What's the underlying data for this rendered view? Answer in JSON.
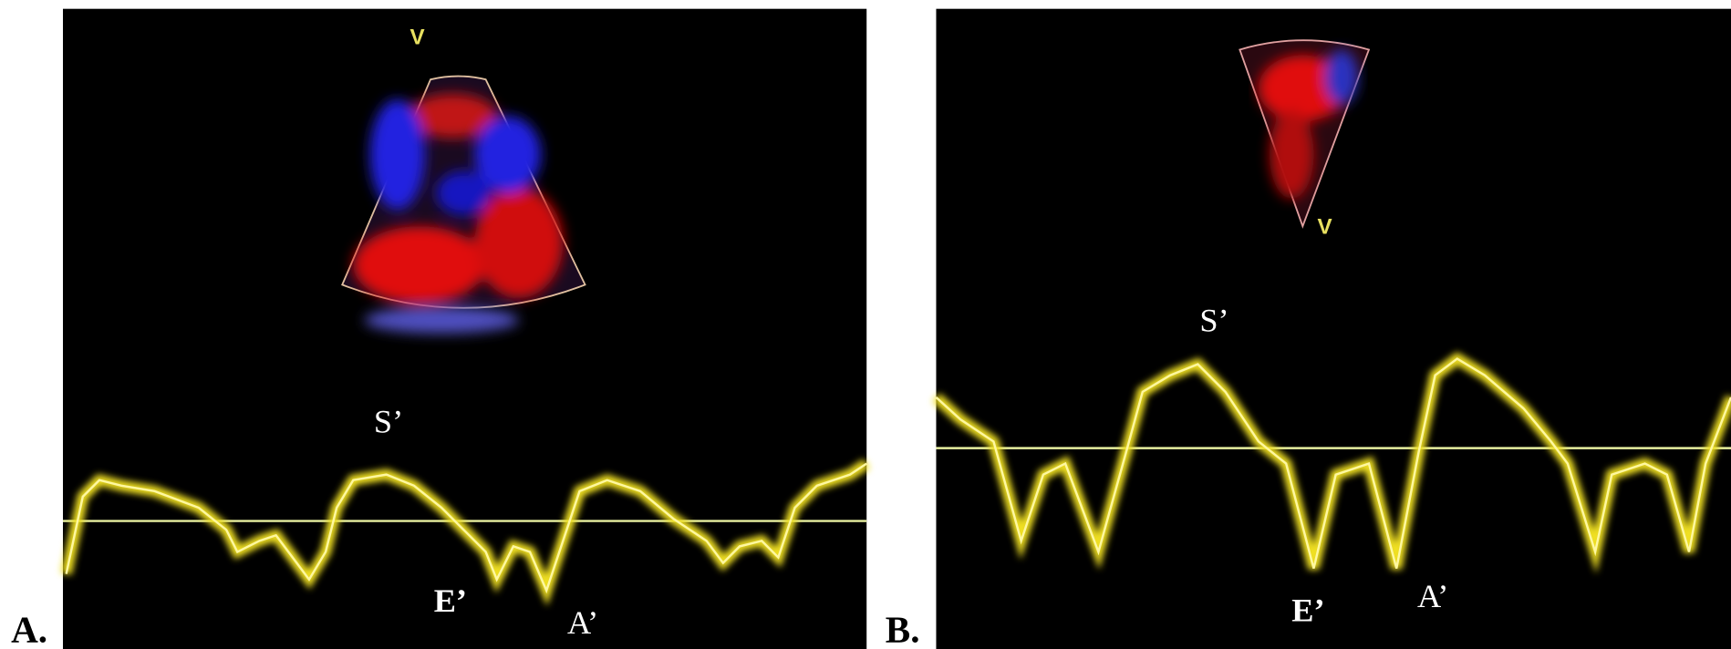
{
  "panels": [
    {
      "label": "A.",
      "view_marker": "V",
      "peaks": {
        "s": "S’",
        "e": "E’",
        "a": "A’"
      }
    },
    {
      "label": "B.",
      "view_marker": "V",
      "peaks": {
        "s": "S’",
        "e": "E’",
        "a": "A’"
      }
    }
  ]
}
